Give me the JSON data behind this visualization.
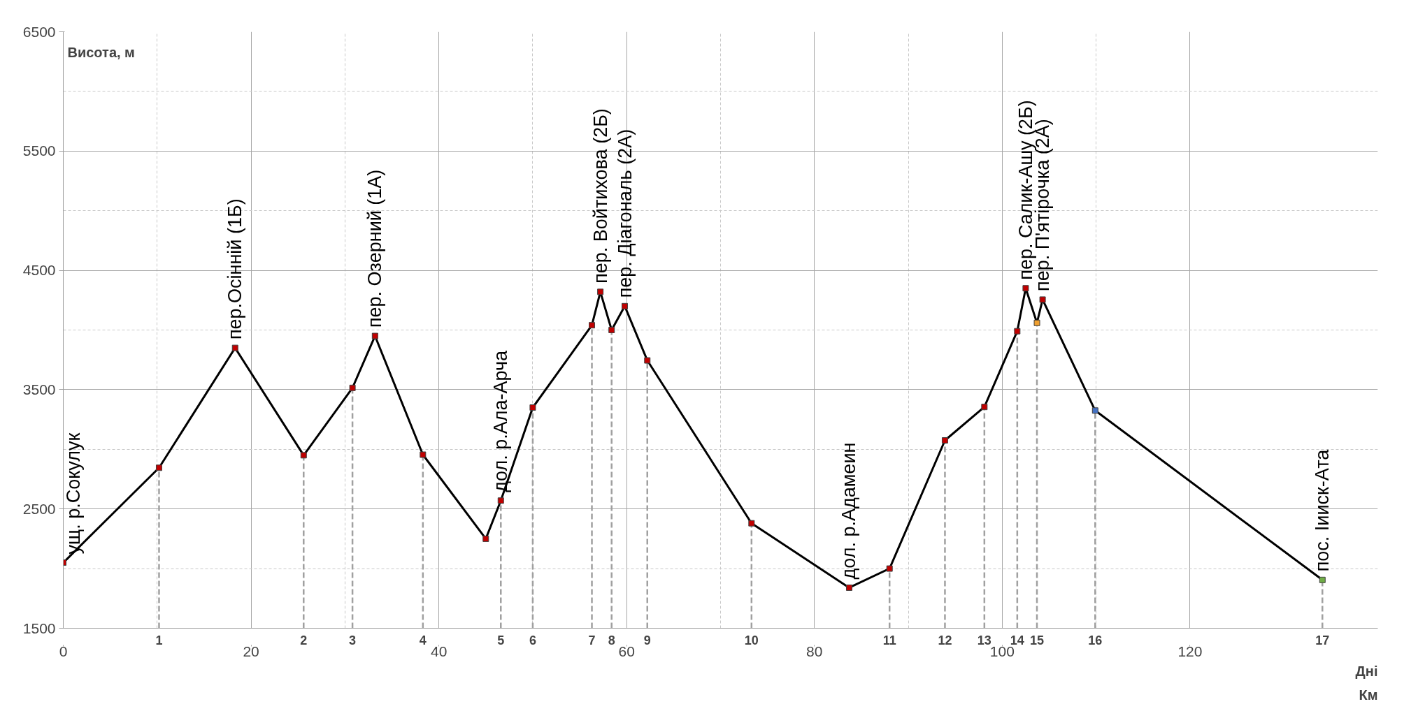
{
  "chart_data": {
    "type": "line",
    "ylabel": "Висота, м",
    "xlabel": "Км",
    "x": [
      0,
      10.2,
      18.3,
      25.6,
      30.8,
      33.2,
      38.3,
      45.0,
      46.6,
      50.0,
      56.3,
      57.2,
      58.4,
      59.8,
      62.2,
      73.3,
      83.7,
      88.0,
      93.9,
      98.1,
      101.6,
      102.5,
      103.7,
      104.3,
      109.9,
      134.1
    ],
    "series": [
      {
        "color": "#000000",
        "colors": [
          "#c00000",
          "#c00000",
          "#c00000",
          "#c00000",
          "#c00000",
          "#c00000",
          "#c00000",
          "#c00000",
          "#c00000",
          "#c00000",
          "#c00000",
          "#c00000",
          "#c00000",
          "#c00000",
          "#c00000",
          "#c00000",
          "#c00000",
          "#c00000",
          "#c00000",
          "#c00000",
          "#c00000",
          "#c00000",
          "#f0a030",
          "#c00000",
          "#4472c4",
          "#70ad47"
        ],
        "values": [
          2050,
          2845,
          3850,
          2950,
          3515,
          3950,
          2955,
          2250,
          2570,
          3350,
          4040,
          4320,
          4000,
          4200,
          3745,
          2380,
          1840,
          2000,
          3075,
          3355,
          3990,
          4350,
          4060,
          4255,
          3325,
          1905
        ]
      }
    ],
    "xlim": [
      0,
      140
    ],
    "ylim": [
      1500,
      6500
    ],
    "xticks": [
      0,
      20,
      40,
      60,
      80,
      100,
      120
    ],
    "yticks": [
      1500,
      2500,
      3500,
      4500,
      5500,
      6500
    ],
    "grid": true,
    "marker": "square",
    "line_style": "solid",
    "ref_lines": [
      {
        "axis": "x",
        "value": 10.2,
        "line_style": "dashed",
        "color": "#a0a0a0"
      },
      {
        "axis": "x",
        "value": 25.6,
        "line_style": "dashed",
        "color": "#a0a0a0"
      },
      {
        "axis": "x",
        "value": 30.8,
        "line_style": "dashed",
        "color": "#a0a0a0"
      },
      {
        "axis": "x",
        "value": 38.3,
        "line_style": "dashed",
        "color": "#a0a0a0"
      },
      {
        "axis": "x",
        "value": 46.6,
        "line_style": "dashed",
        "color": "#a0a0a0"
      },
      {
        "axis": "x",
        "value": 50.0,
        "line_style": "dashed",
        "color": "#a0a0a0"
      },
      {
        "axis": "x",
        "value": 56.3,
        "line_style": "dashed",
        "color": "#a0a0a0"
      },
      {
        "axis": "x",
        "value": 58.4,
        "line_style": "dashed",
        "color": "#a0a0a0"
      },
      {
        "axis": "x",
        "value": 62.2,
        "line_style": "dashed",
        "color": "#a0a0a0"
      },
      {
        "axis": "x",
        "value": 73.3,
        "line_style": "dashed",
        "color": "#a0a0a0"
      },
      {
        "axis": "x",
        "value": 88.0,
        "line_style": "dashed",
        "color": "#a0a0a0"
      },
      {
        "axis": "x",
        "value": 93.9,
        "line_style": "dashed",
        "color": "#a0a0a0"
      },
      {
        "axis": "x",
        "value": 98.1,
        "line_style": "dashed",
        "color": "#a0a0a0"
      },
      {
        "axis": "x",
        "value": 101.6,
        "line_style": "dashed",
        "color": "#a0a0a0"
      },
      {
        "axis": "x",
        "value": 103.7,
        "line_style": "dashed",
        "color": "#a0a0a0"
      },
      {
        "axis": "x",
        "value": 109.9,
        "line_style": "dashed",
        "color": "#a0a0a0"
      },
      {
        "axis": "x",
        "value": 134.1,
        "line_style": "dashed",
        "color": "#a0a0a0"
      }
    ],
    "annotations": [
      "Дні",
      {
        "text": "1",
        "x": 10.2,
        "y": 1500
      },
      {
        "text": "2",
        "x": 25.6,
        "y": 1500
      },
      {
        "text": "3",
        "x": 30.8,
        "y": 1500
      },
      {
        "text": "4",
        "x": 38.3,
        "y": 1500
      },
      {
        "text": "5",
        "x": 46.6,
        "y": 1500
      },
      {
        "text": "6",
        "x": 50.0,
        "y": 1500
      },
      {
        "text": "7",
        "x": 56.3,
        "y": 1500
      },
      {
        "text": "8",
        "x": 58.4,
        "y": 1500
      },
      {
        "text": "9",
        "x": 62.2,
        "y": 1500
      },
      {
        "text": "10",
        "x": 73.3,
        "y": 1500
      },
      {
        "text": "11",
        "x": 88.0,
        "y": 1500
      },
      {
        "text": "12",
        "x": 93.9,
        "y": 1500
      },
      {
        "text": "13",
        "x": 98.1,
        "y": 1500
      },
      {
        "text": "14",
        "x": 101.6,
        "y": 1500
      },
      {
        "text": "15",
        "x": 103.7,
        "y": 1500
      },
      {
        "text": "16",
        "x": 109.9,
        "y": 1500
      },
      {
        "text": "17",
        "x": 134.1,
        "y": 1500
      },
      {
        "text": "ущ. р.Сокулук",
        "x": 0,
        "y": 2050
      },
      {
        "text": "пер.Осінній (1Б)",
        "x": 18.3,
        "y": 3850
      },
      {
        "text": "пер. Озерний (1А)",
        "x": 33.2,
        "y": 3950
      },
      {
        "text": "дол. р.Ала-Арча",
        "x": 46.6,
        "y": 2570
      },
      {
        "text": "пер. Войтихова (2Б)",
        "x": 57.2,
        "y": 4320
      },
      {
        "text": "пер. Діагональ (2А)",
        "x": 59.8,
        "y": 4200
      },
      {
        "text": "дол. р.Адамеин",
        "x": 83.7,
        "y": 1840
      },
      {
        "text": "пер. Салик-Ашу (2Б)",
        "x": 102.5,
        "y": 4350
      },
      {
        "text": "пер. П'ятірочка (2А)",
        "x": 104.3,
        "y": 4255
      },
      {
        "text": "пос. Іииск-Ата",
        "x": 134.1,
        "y": 1905
      }
    ]
  }
}
